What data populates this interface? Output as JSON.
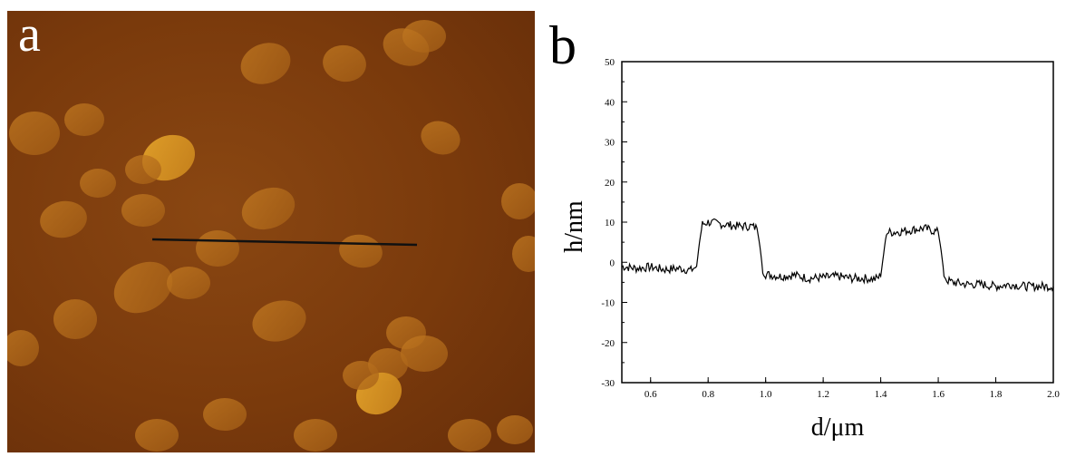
{
  "panels": {
    "a": {
      "letter": "a"
    },
    "b": {
      "letter": "b"
    }
  },
  "colors": {
    "afm_background": "#7a3a0c",
    "afm_flake": "#b9701e",
    "afm_flake_bright": "#d9961f",
    "line_profile": "#000000"
  },
  "chart_data": {
    "type": "line",
    "xlabel": "d/μm",
    "ylabel": "h/nm",
    "xlim": [
      0.5,
      2.0
    ],
    "ylim": [
      -30,
      50
    ],
    "x_ticks": [
      0.6,
      0.8,
      1.0,
      1.2,
      1.4,
      1.6,
      1.8,
      2.0
    ],
    "x_tick_labels": [
      "0.6",
      "0.8",
      "1.0",
      "1.2",
      "1.4",
      "1.6",
      "1.8",
      "2.0"
    ],
    "y_ticks": [
      -30,
      -20,
      -10,
      0,
      10,
      20,
      30,
      40,
      50
    ],
    "y_tick_labels": [
      "-30",
      "-20",
      "-10",
      "0",
      "10",
      "20",
      "30",
      "40",
      "50"
    ],
    "grid": false,
    "series": [
      {
        "x": [
          0.5,
          0.55,
          0.6,
          0.65,
          0.7,
          0.74,
          0.76,
          0.77,
          0.78,
          0.8,
          0.85,
          0.9,
          0.95,
          0.97,
          0.98,
          0.99,
          1.0,
          1.05,
          1.1,
          1.15,
          1.2,
          1.25,
          1.3,
          1.35,
          1.38,
          1.4,
          1.41,
          1.42,
          1.45,
          1.5,
          1.55,
          1.6,
          1.61,
          1.62,
          1.63,
          1.65,
          1.7,
          1.75,
          1.8,
          1.85,
          1.9,
          1.95,
          2.0
        ],
        "y": [
          -1,
          -1.5,
          -1.2,
          -1.8,
          -1.5,
          -2,
          -1,
          5,
          9.5,
          10,
          9.5,
          9,
          9,
          8.5,
          4,
          -2,
          -3,
          -3.5,
          -3.2,
          -4,
          -3.8,
          -3.5,
          -4,
          -4,
          -4.2,
          -3.5,
          2,
          7.5,
          7.5,
          8,
          8.5,
          7.5,
          3,
          -3,
          -4.5,
          -5,
          -5.5,
          -5.5,
          -6,
          -5.5,
          -6,
          -6,
          -6
        ]
      }
    ]
  }
}
